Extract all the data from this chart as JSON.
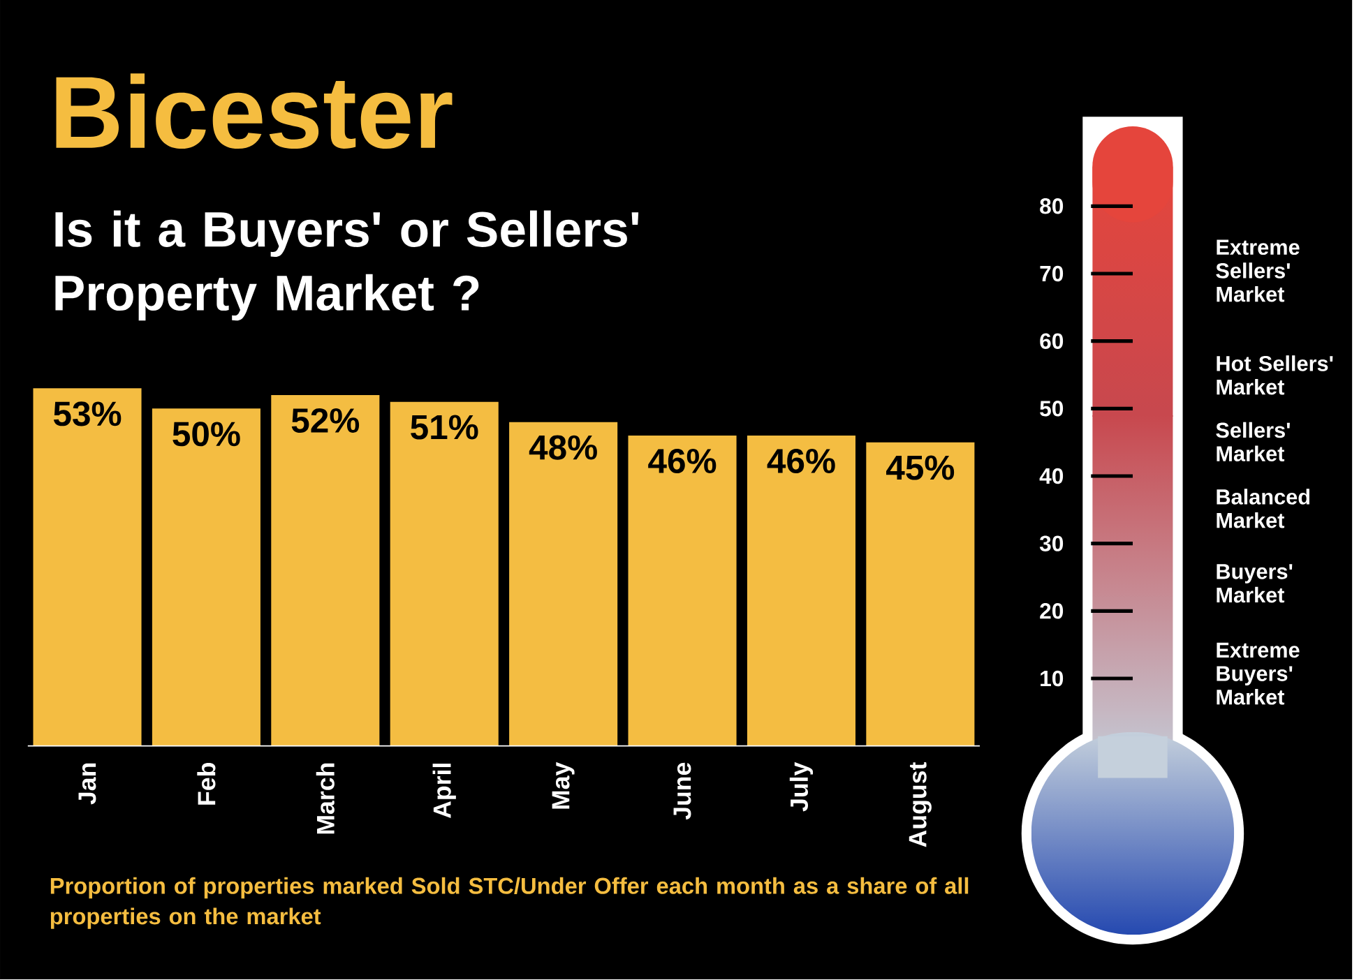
{
  "chart_data": {
    "type": "bar",
    "title": "Bicester",
    "subtitle": "Is it a Buyers' or Sellers' Property Market ?",
    "categories": [
      "Jan",
      "Feb",
      "March",
      "April",
      "May",
      "June",
      "July",
      "August"
    ],
    "values": [
      53,
      50,
      52,
      51,
      48,
      46,
      46,
      45
    ],
    "value_labels": [
      "53%",
      "50%",
      "52%",
      "51%",
      "48%",
      "46%",
      "46%",
      "45%"
    ],
    "color": "#f4bd42",
    "ylim": [
      0,
      80
    ],
    "yticks": [
      10,
      20,
      30,
      40,
      50,
      60,
      70,
      80
    ],
    "annotations": [
      "Proportion of properties marked Sold STC/Under Offer each month as a share of all properties on the market",
      "Extreme Sellers' Market",
      "Hot Sellers' Market",
      "Sellers' Market",
      "Balanced Market",
      "Buyers' Market",
      "Extreme Buyers' Market"
    ]
  }
}
